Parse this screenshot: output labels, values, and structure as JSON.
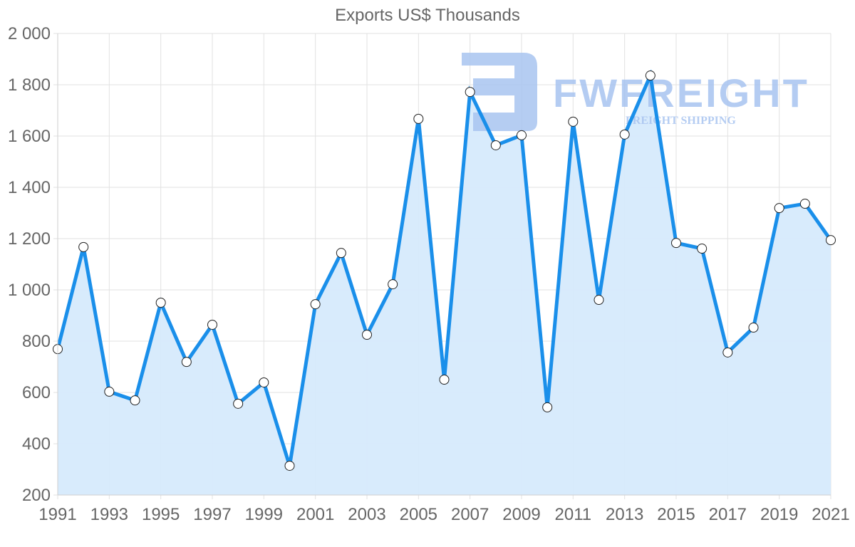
{
  "chart_data": {
    "type": "area",
    "title": "Exports US$ Thousands",
    "xlabel": "",
    "ylabel": "",
    "x": [
      1991,
      1992,
      1993,
      1994,
      1995,
      1996,
      1997,
      1998,
      1999,
      2000,
      2001,
      2002,
      2003,
      2004,
      2005,
      2006,
      2007,
      2008,
      2009,
      2010,
      2011,
      2012,
      2013,
      2014,
      2015,
      2016,
      2017,
      2018,
      2019,
      2020,
      2021
    ],
    "series": [
      {
        "name": "Exports US$ Thousands",
        "values": [
          769,
          1167,
          603,
          569,
          950,
          719,
          864,
          556,
          639,
          314,
          944,
          1144,
          825,
          1022,
          1667,
          650,
          1772,
          1564,
          1603,
          542,
          1656,
          961,
          1606,
          1836,
          1183,
          1161,
          756,
          853,
          1319,
          1336,
          1194
        ]
      }
    ],
    "ylim": [
      200,
      2000
    ],
    "yticks": [
      200,
      400,
      600,
      800,
      1000,
      1200,
      1400,
      1600,
      1800,
      2000
    ],
    "ytick_labels": [
      "200",
      "400",
      "600",
      "800",
      "1 000",
      "1 200",
      "1 400",
      "1 600",
      "1 800",
      "2 000"
    ],
    "xtick_labels": [
      "1991",
      "1993",
      "1995",
      "1997",
      "1999",
      "2001",
      "2003",
      "2005",
      "2007",
      "2009",
      "2011",
      "2013",
      "2015",
      "2017",
      "2019",
      "2021"
    ],
    "grid": true,
    "legend": "none",
    "colors": {
      "line": "#1a8fea",
      "fill": "#d6eafc",
      "grid": "#e2e2e2",
      "axis_text": "#666666",
      "point_fill": "#ffffff",
      "point_stroke": "#222222"
    }
  },
  "watermark": {
    "brand": "FWFREIGHT",
    "tagline": "FREIGHT SHIPPING",
    "color": "#a8c4f0"
  }
}
